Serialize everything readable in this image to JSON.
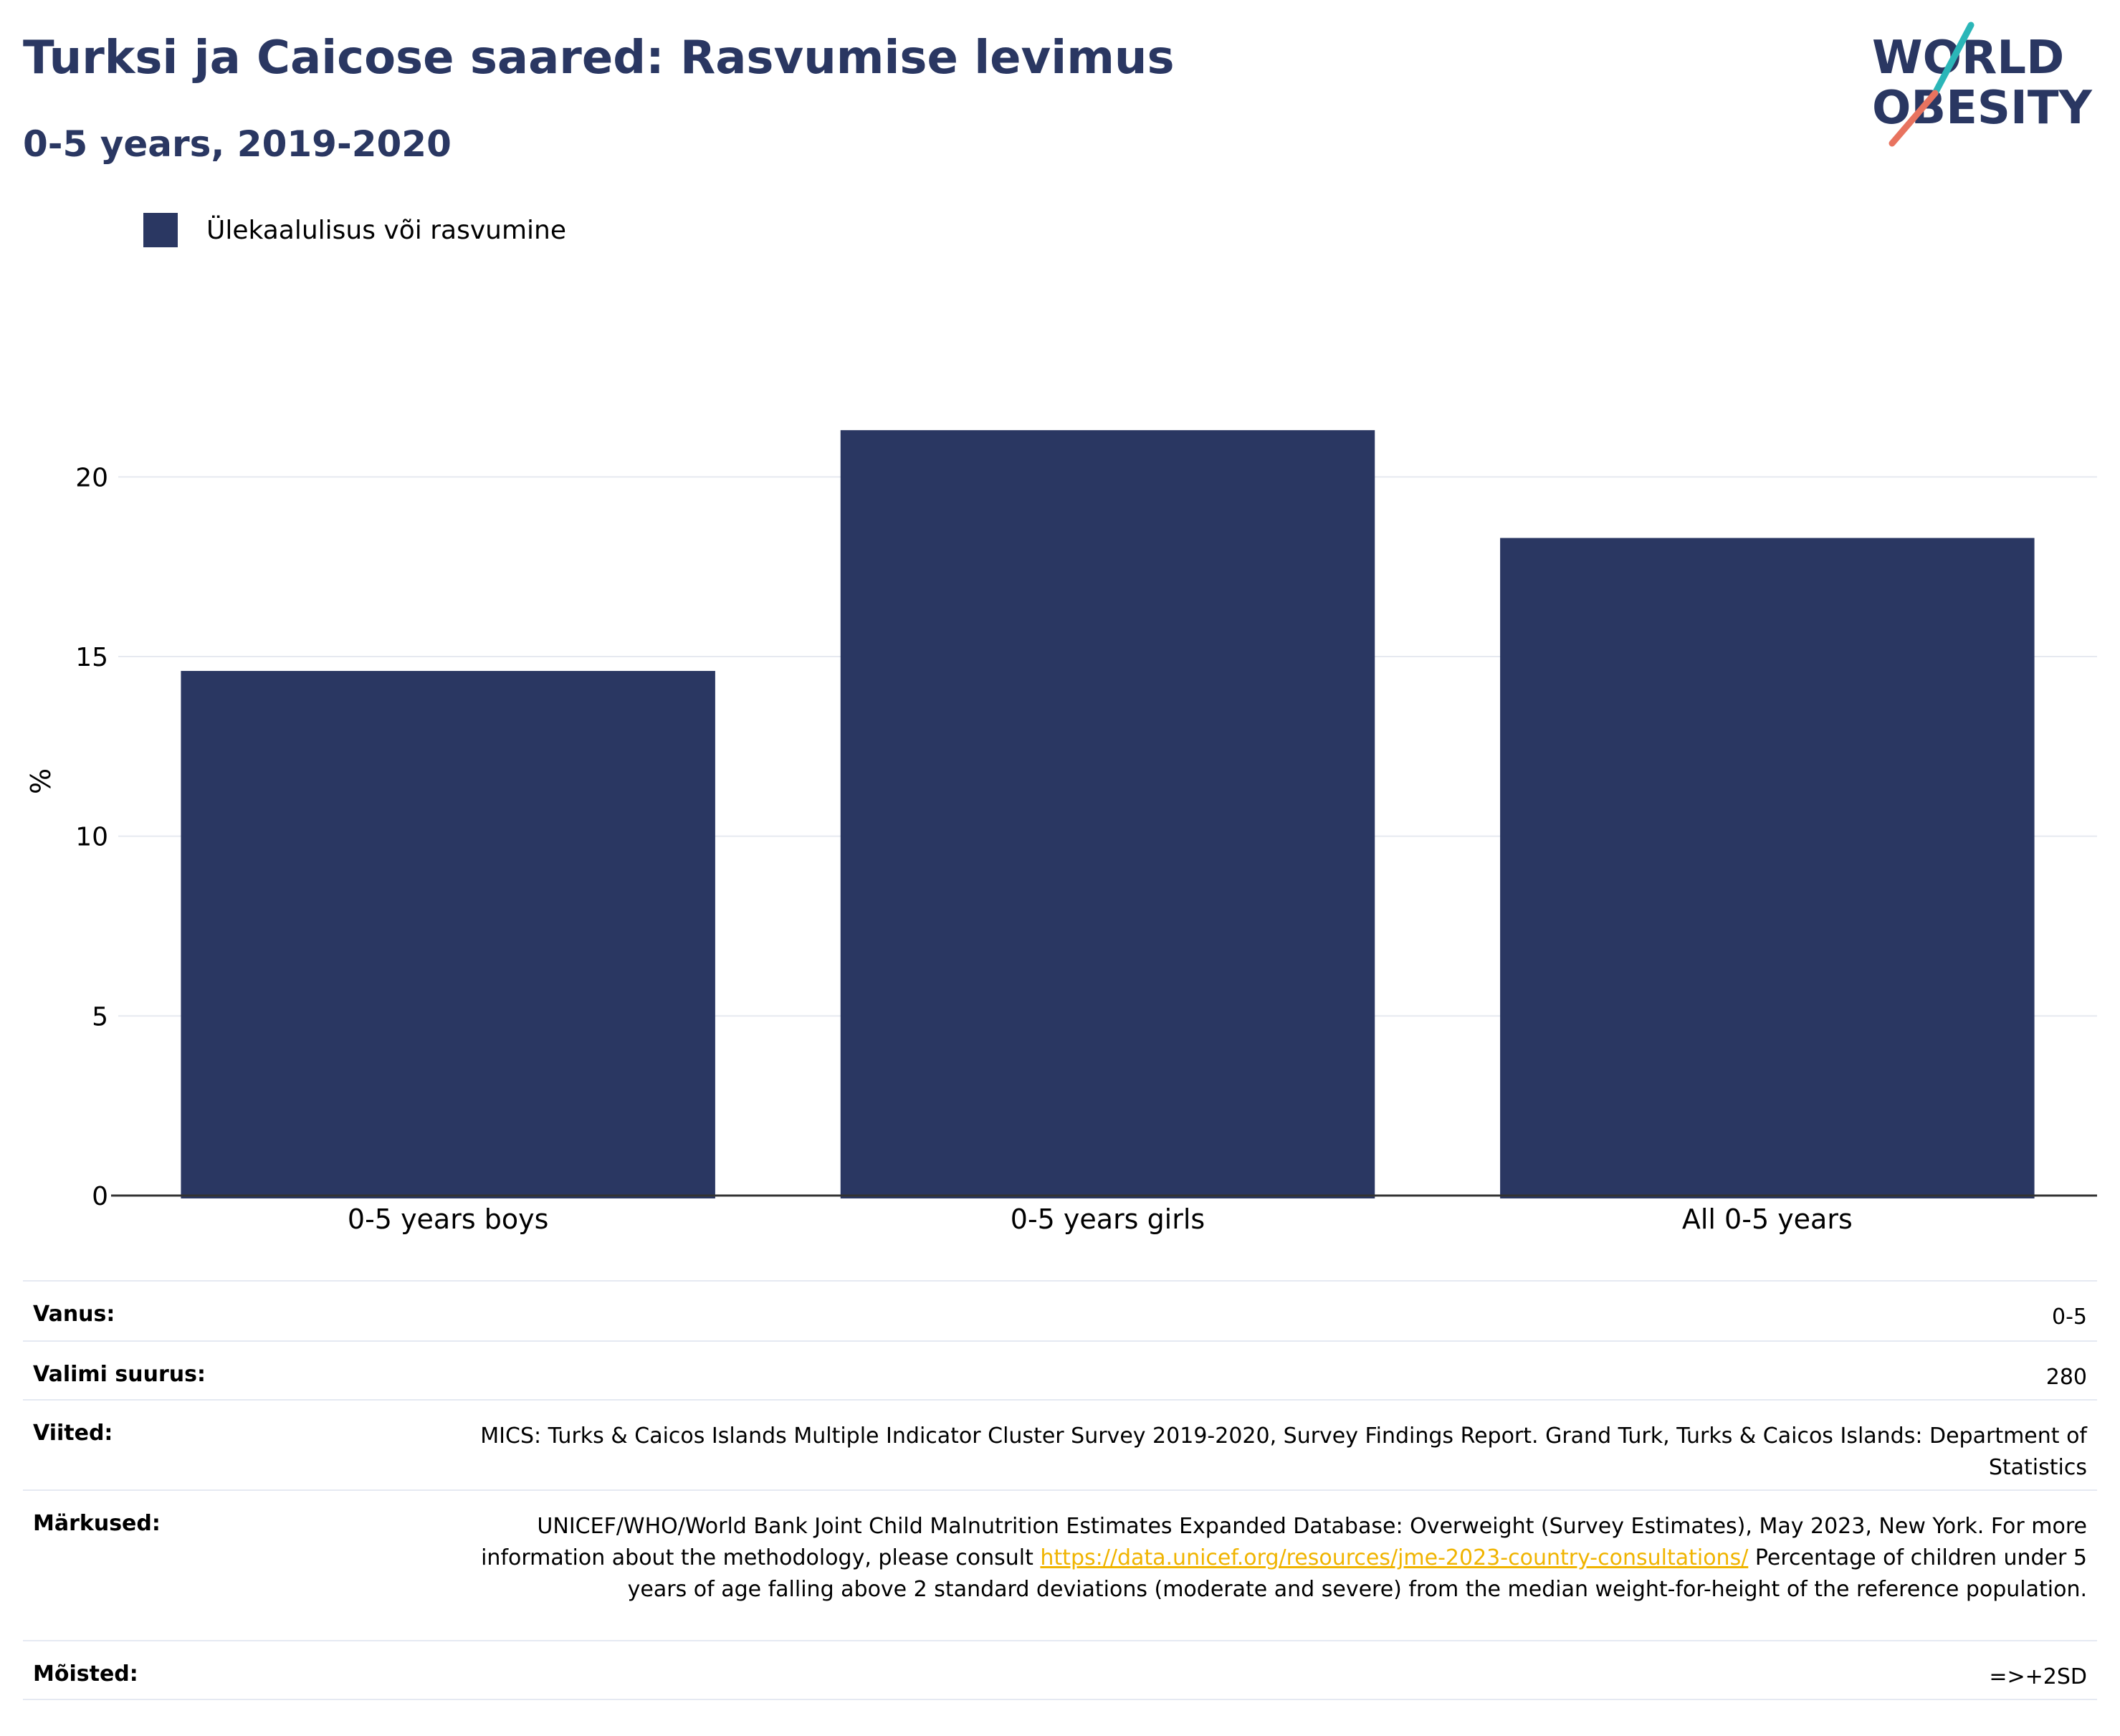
{
  "header": {
    "title": "Turksi ja Caicose saared: Rasvumise levimus",
    "subtitle": "0-5 years, 2019-2020"
  },
  "logo": {
    "line1": "WORLD",
    "line2": "OBESITY"
  },
  "legend": {
    "label": "Ülekaalulisus või rasvumine",
    "color": "#2a3762"
  },
  "chart_data": {
    "type": "bar",
    "categories": [
      "0-5 years boys",
      "0-5 years girls",
      "All 0-5 years"
    ],
    "series": [
      {
        "name": "Ülekaalulisus või rasvumine",
        "values": [
          14.6,
          21.3,
          18.3
        ],
        "color": "#2a3762"
      }
    ],
    "title": "Turksi ja Caicose saared: Rasvumise levimus",
    "subtitle": "0-5 years, 2019-2020",
    "xlabel": "",
    "ylabel": "%",
    "ylim": [
      0,
      22.5
    ],
    "yticks": [
      0,
      5,
      10,
      15,
      20
    ],
    "grid": true,
    "legend_position": "top-left"
  },
  "info": {
    "age": {
      "label": "Vanus:",
      "value": "0-5"
    },
    "sample": {
      "label": "Valimi suurus:",
      "value": "280"
    },
    "refs": {
      "label": "Viited:",
      "value": "MICS: Turks & Caicos Islands Multiple Indicator Cluster Survey 2019-2020, Survey Findings Report. Grand Turk, Turks & Caicos Islands: Department of Statistics"
    },
    "notes": {
      "label": "Märkused:",
      "text1": "UNICEF/WHO/World Bank Joint Child Malnutrition Estimates Expanded Database: Overweight (Survey Estimates), May 2023, New York. For more information about the methodology, please consult",
      "link": "https://data.unicef.org/resources/jme-2023-country-consultations/",
      "text2": "Percentage of children under 5 years of age falling above 2 standard deviations (moderate and severe) from the median weight-for-height of the reference population."
    },
    "definitions": {
      "label": "Mõisted:",
      "value": "=>+2SD"
    }
  }
}
